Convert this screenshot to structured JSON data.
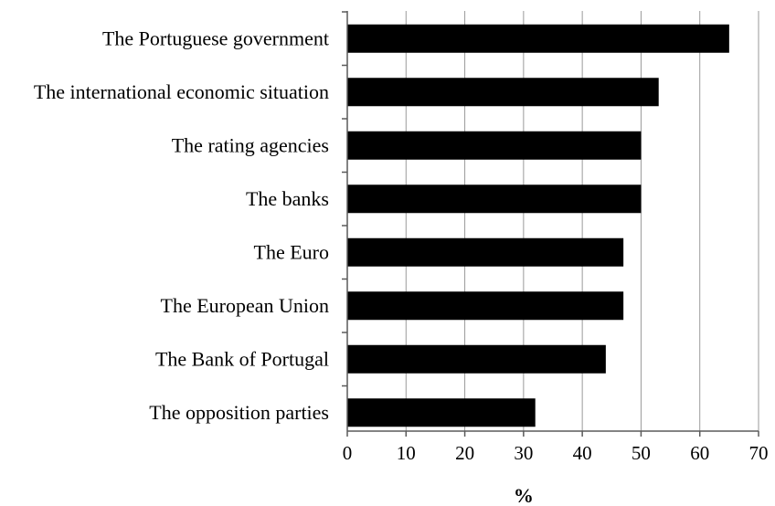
{
  "chart_data": {
    "type": "bar",
    "orientation": "horizontal",
    "categories": [
      "The Portuguese government",
      "The international economic situation",
      "The rating agencies",
      "The banks",
      "The Euro",
      "The European Union",
      "The Bank of Portugal",
      "The opposition parties"
    ],
    "values": [
      65,
      53,
      50,
      50,
      47,
      47,
      44,
      32
    ],
    "xlabel": "%",
    "ylabel": "",
    "xlim": [
      0,
      70
    ],
    "xticks": [
      0,
      10,
      20,
      30,
      40,
      50,
      60,
      70
    ],
    "grid": true,
    "bar_color": "#000000"
  }
}
